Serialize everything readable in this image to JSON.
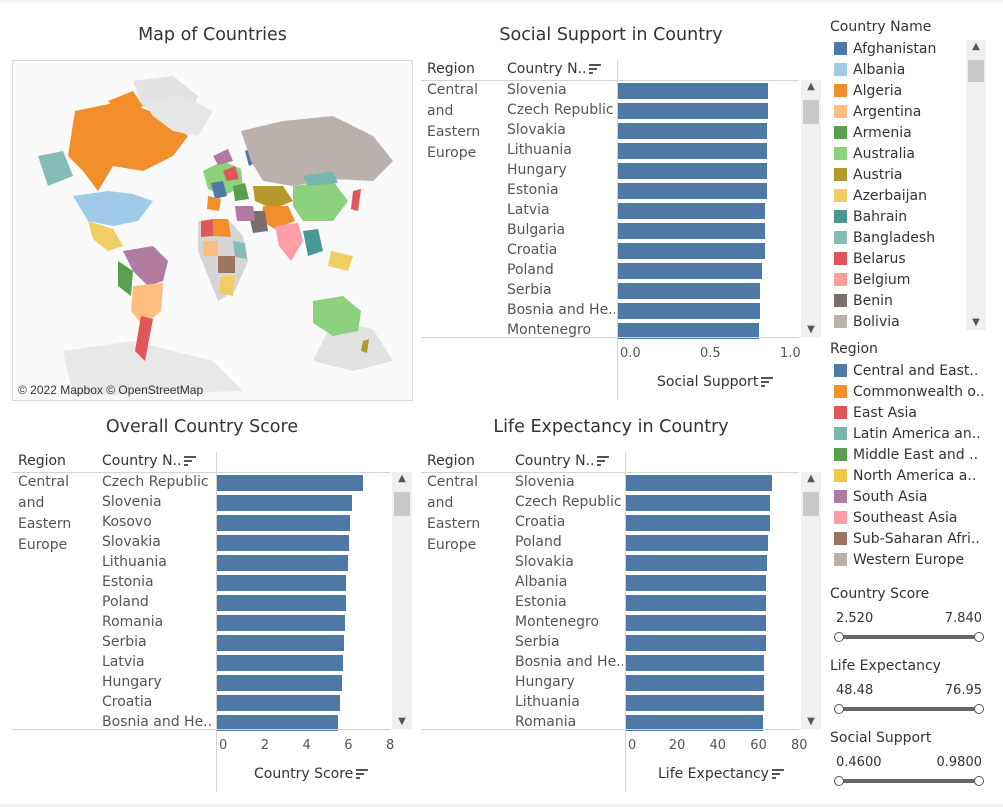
{
  "map": {
    "title": "Map of Countries",
    "attribution": "© 2022 Mapbox © OpenStreetMap"
  },
  "social": {
    "title": "Social Support in Country",
    "col_region": "Region",
    "col_country": "Country N..",
    "region": [
      "Central",
      "and",
      "Eastern",
      "Europe"
    ],
    "axis_title": "Social Support",
    "ticks": [
      "0.0",
      "0.5",
      "1.0"
    ]
  },
  "overall": {
    "title": "Overall Country Score",
    "col_region": "Region",
    "col_country": "Country N..",
    "region": [
      "Central",
      "and",
      "Eastern",
      "Europe"
    ],
    "axis_title": "Country Score",
    "ticks": [
      "0",
      "2",
      "4",
      "6",
      "8"
    ]
  },
  "life": {
    "title": "Life Expectancy in Country",
    "col_region": "Region",
    "col_country": "Country N..",
    "region": [
      "Central and",
      "Eastern",
      "Europe"
    ],
    "axis_title": "Life Expectancy",
    "ticks": [
      "0",
      "20",
      "40",
      "60",
      "80"
    ]
  },
  "chart_data": [
    {
      "type": "bar",
      "title": "Social Support in Country",
      "xlabel": "Social Support",
      "xlim": [
        0,
        1.05
      ],
      "categories": [
        "Slovenia",
        "Czech Republic",
        "Slovakia",
        "Lithuania",
        "Hungary",
        "Estonia",
        "Latvia",
        "Bulgaria",
        "Croatia",
        "Poland",
        "Serbia",
        "Bosnia and He..",
        "Montenegro"
      ],
      "values": [
        0.94,
        0.94,
        0.93,
        0.93,
        0.93,
        0.93,
        0.92,
        0.92,
        0.92,
        0.9,
        0.89,
        0.89,
        0.88
      ]
    },
    {
      "type": "bar",
      "title": "Overall Country Score",
      "xlabel": "Country Score",
      "xlim": [
        0,
        8
      ],
      "categories": [
        "Czech Republic",
        "Slovenia",
        "Kosovo",
        "Slovakia",
        "Lithuania",
        "Estonia",
        "Poland",
        "Romania",
        "Serbia",
        "Latvia",
        "Hungary",
        "Croatia",
        "Bosnia and He.."
      ],
      "values": [
        6.97,
        6.46,
        6.37,
        6.33,
        6.26,
        6.19,
        6.18,
        6.14,
        6.08,
        6.03,
        5.99,
        5.88,
        5.81
      ]
    },
    {
      "type": "bar",
      "title": "Life Expectancy in Country",
      "xlabel": "Life Expectancy",
      "xlim": [
        0,
        80
      ],
      "categories": [
        "Slovenia",
        "Czech Republic",
        "Croatia",
        "Poland",
        "Slovakia",
        "Albania",
        "Estonia",
        "Montenegro",
        "Serbia",
        "Bosnia and He..",
        "Hungary",
        "Lithuania",
        "Romania"
      ],
      "values": [
        71.4,
        70.8,
        70.8,
        69.7,
        69.2,
        68.9,
        68.8,
        68.7,
        68.6,
        67.8,
        67.6,
        67.6,
        67.4
      ]
    }
  ],
  "legend_country": {
    "title": "Country Name",
    "items": [
      {
        "label": "Afghanistan",
        "color": "#4e79a7"
      },
      {
        "label": "Albania",
        "color": "#a0cbe8"
      },
      {
        "label": "Algeria",
        "color": "#f28e2b"
      },
      {
        "label": "Argentina",
        "color": "#ffbe7d"
      },
      {
        "label": "Armenia",
        "color": "#59a14f"
      },
      {
        "label": "Australia",
        "color": "#8cd17d"
      },
      {
        "label": "Austria",
        "color": "#b6992d"
      },
      {
        "label": "Azerbaijan",
        "color": "#f1ce63"
      },
      {
        "label": "Bahrain",
        "color": "#499894"
      },
      {
        "label": "Bangladesh",
        "color": "#86bcb6"
      },
      {
        "label": "Belarus",
        "color": "#e15759"
      },
      {
        "label": "Belgium",
        "color": "#ff9d9a"
      },
      {
        "label": "Benin",
        "color": "#79706e"
      },
      {
        "label": "Bolivia",
        "color": "#bab0ac"
      }
    ]
  },
  "legend_region": {
    "title": "Region",
    "items": [
      {
        "label": "Central and East..",
        "color": "#4e79a7"
      },
      {
        "label": "Commonwealth o..",
        "color": "#f28e2b"
      },
      {
        "label": "East Asia",
        "color": "#e15759"
      },
      {
        "label": "Latin America an..",
        "color": "#76b7b2"
      },
      {
        "label": "Middle East and ..",
        "color": "#59a14f"
      },
      {
        "label": "North America a..",
        "color": "#edc948"
      },
      {
        "label": "South Asia",
        "color": "#b07aa1"
      },
      {
        "label": "Southeast Asia",
        "color": "#ff9da7"
      },
      {
        "label": "Sub-Saharan Afri..",
        "color": "#9c755f"
      },
      {
        "label": "Western Europe",
        "color": "#bab0ac"
      }
    ]
  },
  "filters": [
    {
      "title": "Country Score",
      "min": "2.520",
      "max": "7.840"
    },
    {
      "title": "Life Expectancy",
      "min": "48.48",
      "max": "76.95"
    },
    {
      "title": "Social Support",
      "min": "0.4600",
      "max": "0.9800"
    }
  ]
}
